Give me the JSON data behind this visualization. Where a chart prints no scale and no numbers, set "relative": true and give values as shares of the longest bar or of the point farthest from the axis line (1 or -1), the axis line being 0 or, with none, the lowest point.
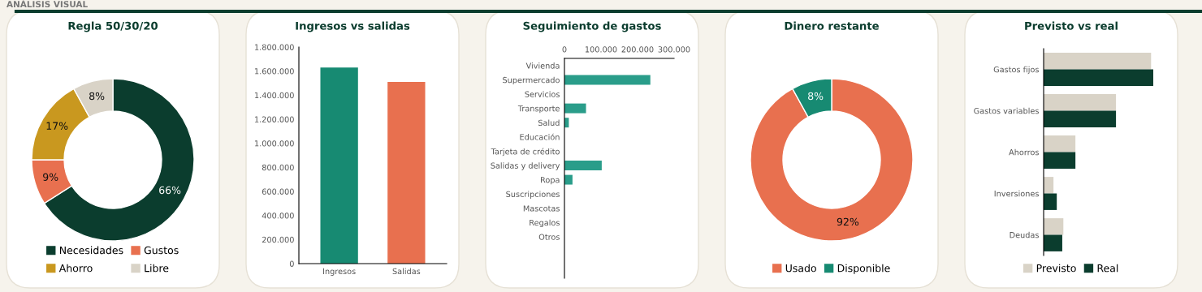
{
  "chart_data": [
    {
      "type": "donut",
      "title": "Regla 50/30/20",
      "annotations": [
        "ANÁLISIS VISUAL"
      ],
      "categories": [
        "Necesidades",
        "Gustos",
        "Ahorro",
        "Libre"
      ],
      "values": [
        66,
        9,
        17,
        8
      ],
      "value_labels": [
        "66%",
        "9%",
        "17%",
        "8%"
      ],
      "colors": [
        "#0b3d2e",
        "#e8704f",
        "#c9981f",
        "#d9d3c7"
      ],
      "legend": "bottom"
    },
    {
      "type": "bar",
      "title": "Ingresos vs salidas",
      "categories": [
        "Ingresos",
        "Salidas"
      ],
      "values": [
        1630000,
        1510000
      ],
      "colors": [
        "#178a72",
        "#e8704f"
      ],
      "ylim": [
        0,
        1800000
      ],
      "yticks": [
        0,
        {
          "value": 200000,
          "label": "200.000"
        },
        {
          "value": 400000,
          "label": "400.000"
        },
        {
          "value": 600000,
          "label": "600.000"
        },
        {
          "value": 800000,
          "label": "800.000"
        },
        {
          "value": 1000000,
          "label": "1.000.000"
        },
        {
          "value": 1200000,
          "label": "1.200.000"
        },
        {
          "value": 1400000,
          "label": "1.400.000"
        },
        {
          "value": 1600000,
          "label": "1.600.000"
        },
        {
          "value": 1800000,
          "label": "1.800.000"
        }
      ],
      "grid": false
    },
    {
      "type": "bar",
      "title": "Seguimiento de gastos",
      "orientation": "horizontal",
      "categories": [
        "Vivienda",
        "Supermercado",
        "Servicios",
        "Transporte",
        "Salud",
        "Educación",
        "Tarjeta de crédito",
        "Salidas y delivery",
        "Ropa",
        "Suscripciones",
        "Mascotas",
        "Regalos",
        "Otros"
      ],
      "values": [
        0,
        235000,
        0,
        59000,
        12000,
        0,
        0,
        102000,
        22000,
        0,
        0,
        0,
        0
      ],
      "color": "#2a9d8a",
      "xlim": [
        0,
        300000
      ],
      "xticks": [
        0,
        {
          "value": 100000,
          "label": "100.000"
        },
        {
          "value": 200000,
          "label": "200.000"
        },
        {
          "value": 300000,
          "label": "300.000"
        }
      ],
      "grid": false
    },
    {
      "type": "donut",
      "title": "Dinero restante",
      "categories": [
        "Usado",
        "Disponible"
      ],
      "values": [
        92,
        8
      ],
      "value_labels": [
        "92%",
        "8%"
      ],
      "colors": [
        "#e8704f",
        "#178a72"
      ],
      "legend": "bottom"
    },
    {
      "type": "bar",
      "title": "Previsto vs real",
      "orientation": "horizontal",
      "relative": true,
      "categories": [
        "Gastos fijos",
        "Gastos variables",
        "Ahorros",
        "Inversiones",
        "Deudas"
      ],
      "legend": "bottom",
      "grid": false,
      "series": [
        {
          "name": "Previsto",
          "color": "#d9d3c7",
          "values": [
            0.98,
            0.66,
            0.29,
            0.09,
            0.18
          ]
        },
        {
          "name": "Real",
          "color": "#0b3d2e",
          "values": [
            1,
            0.66,
            0.29,
            0.12,
            0.17
          ]
        }
      ]
    }
  ]
}
